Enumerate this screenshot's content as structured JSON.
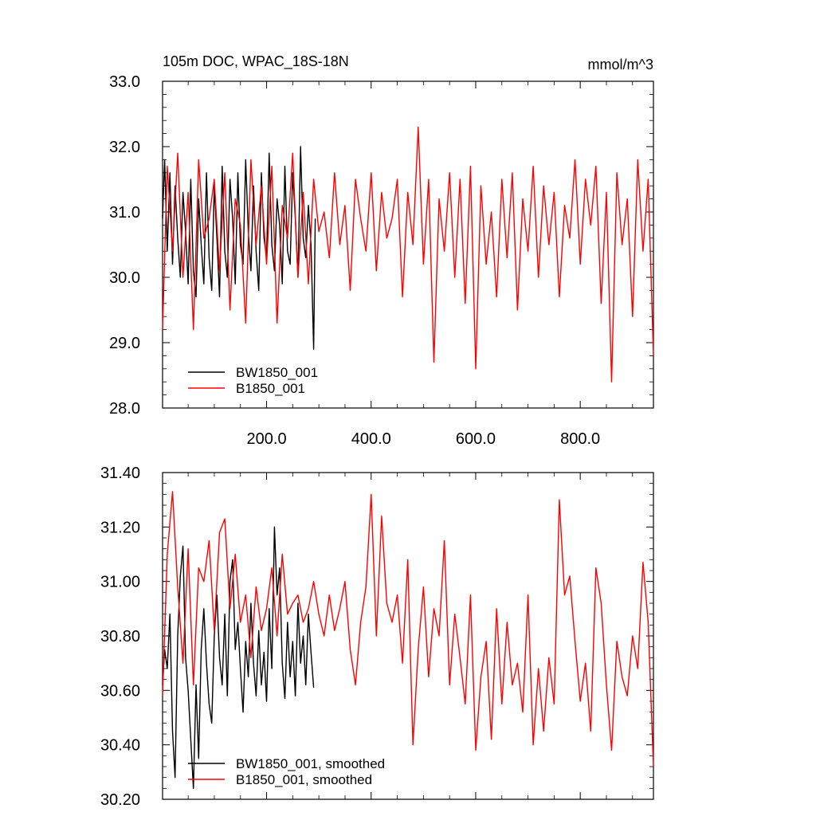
{
  "chart_data": [
    {
      "type": "line",
      "title": "105m DOC, WPAC_18S-18N",
      "units": "mmol/m^3",
      "xlim": [
        1,
        940
      ],
      "ylim": [
        28.0,
        33.0
      ],
      "yticks": [
        "28.0",
        "29.0",
        "30.0",
        "31.0",
        "32.0",
        "33.0"
      ],
      "xticks": [
        "200.0",
        "400.0",
        "600.0",
        "800.0"
      ],
      "legend_position": "bottom-left",
      "series": [
        {
          "name": "BW1850_001",
          "color": "#000000",
          "x": [
            1,
            5,
            10,
            15,
            20,
            25,
            30,
            35,
            40,
            45,
            50,
            55,
            60,
            65,
            70,
            75,
            80,
            85,
            90,
            95,
            100,
            105,
            110,
            115,
            120,
            125,
            130,
            135,
            140,
            145,
            150,
            155,
            160,
            165,
            170,
            175,
            180,
            185,
            190,
            195,
            200,
            205,
            210,
            215,
            220,
            225,
            230,
            235,
            240,
            245,
            250,
            255,
            260,
            265,
            270,
            275,
            280,
            285,
            290,
            293
          ],
          "values": [
            30.9,
            31.8,
            30.4,
            31.6,
            30.2,
            31.4,
            30.6,
            30.0,
            31.3,
            30.7,
            29.9,
            31.5,
            30.1,
            29.7,
            31.2,
            30.5,
            29.9,
            31.6,
            30.3,
            29.8,
            31.4,
            30.6,
            29.7,
            31.7,
            30.4,
            30.0,
            31.5,
            30.9,
            29.9,
            31.6,
            30.5,
            30.2,
            31.8,
            30.7,
            30.1,
            31.4,
            30.4,
            29.8,
            31.6,
            30.6,
            30.3,
            31.9,
            30.5,
            30.1,
            31.2,
            30.8,
            29.9,
            31.7,
            30.4,
            30.2,
            31.6,
            30.9,
            30.0,
            32.0,
            30.6,
            30.3,
            31.1,
            30.5,
            28.9,
            30.9
          ]
        },
        {
          "name": "B1850_001",
          "color": "#ff0000",
          "x": [
            1,
            10,
            20,
            30,
            40,
            50,
            60,
            70,
            80,
            90,
            100,
            110,
            120,
            130,
            140,
            150,
            160,
            170,
            180,
            190,
            200,
            210,
            220,
            230,
            240,
            250,
            260,
            270,
            280,
            290,
            300,
            310,
            320,
            330,
            340,
            350,
            360,
            370,
            380,
            390,
            400,
            410,
            420,
            430,
            440,
            450,
            460,
            470,
            480,
            490,
            500,
            510,
            520,
            530,
            540,
            550,
            560,
            570,
            580,
            590,
            600,
            610,
            620,
            630,
            640,
            650,
            660,
            670,
            680,
            690,
            700,
            710,
            720,
            730,
            740,
            750,
            760,
            770,
            780,
            790,
            800,
            810,
            820,
            830,
            840,
            850,
            860,
            870,
            880,
            890,
            900,
            910,
            920,
            930,
            940
          ],
          "values": [
            29.2,
            31.7,
            30.4,
            31.9,
            30.0,
            31.3,
            29.2,
            31.8,
            30.6,
            30.9,
            31.5,
            30.1,
            31.6,
            29.5,
            31.2,
            30.8,
            29.3,
            31.8,
            30.5,
            31.4,
            30.2,
            31.7,
            29.3,
            31.1,
            30.6,
            31.9,
            30.0,
            31.3,
            29.9,
            31.5,
            30.7,
            31.0,
            30.3,
            31.6,
            30.5,
            31.1,
            29.8,
            31.5,
            30.9,
            30.4,
            31.6,
            30.1,
            31.3,
            30.6,
            30.9,
            31.5,
            29.7,
            31.3,
            30.5,
            32.3,
            30.2,
            31.5,
            28.7,
            31.2,
            30.4,
            31.6,
            30.0,
            31.5,
            29.6,
            31.7,
            28.6,
            31.4,
            30.2,
            31.0,
            29.7,
            31.5,
            30.3,
            31.6,
            29.5,
            31.2,
            30.4,
            31.7,
            30.0,
            31.4,
            30.5,
            31.3,
            29.7,
            31.1,
            30.6,
            31.8,
            30.2,
            31.5,
            30.8,
            31.7,
            29.6,
            31.3,
            28.4,
            31.6,
            30.5,
            31.2,
            29.4,
            31.8,
            30.4,
            31.5,
            28.8
          ]
        }
      ]
    },
    {
      "type": "line",
      "title": "",
      "xlim": [
        1,
        940
      ],
      "ylim": [
        30.2,
        31.4
      ],
      "yticks": [
        "30.20",
        "30.40",
        "30.60",
        "30.80",
        "31.00",
        "31.20",
        "31.40"
      ],
      "legend_position": "bottom-left",
      "series": [
        {
          "name": "BW1850_001, smoothed",
          "color": "#000000",
          "x": [
            1,
            5,
            10,
            15,
            20,
            25,
            30,
            35,
            40,
            45,
            50,
            55,
            60,
            65,
            70,
            75,
            80,
            85,
            90,
            95,
            100,
            105,
            110,
            115,
            120,
            125,
            130,
            135,
            140,
            145,
            150,
            155,
            160,
            165,
            170,
            175,
            180,
            185,
            190,
            195,
            200,
            205,
            210,
            215,
            220,
            225,
            230,
            235,
            240,
            245,
            250,
            255,
            260,
            265,
            270,
            275,
            280,
            285,
            290
          ],
          "values": [
            30.62,
            30.75,
            30.68,
            30.88,
            30.45,
            30.28,
            30.8,
            31.02,
            31.13,
            30.72,
            30.6,
            30.42,
            30.24,
            30.62,
            30.35,
            30.75,
            30.9,
            30.7,
            30.55,
            30.48,
            30.8,
            30.95,
            30.72,
            30.62,
            30.88,
            30.58,
            31.0,
            31.08,
            30.75,
            30.85,
            30.68,
            30.52,
            30.78,
            30.65,
            30.92,
            30.7,
            30.58,
            30.82,
            30.62,
            30.74,
            30.56,
            30.9,
            30.68,
            31.2,
            30.95,
            31.05,
            30.7,
            30.57,
            30.85,
            30.65,
            30.78,
            30.58,
            30.92,
            30.7,
            30.8,
            30.62,
            30.88,
            30.74,
            30.61
          ]
        },
        {
          "name": "B1850_001, smoothed",
          "color": "#ff0000",
          "x": [
            1,
            10,
            20,
            30,
            40,
            50,
            60,
            70,
            80,
            90,
            100,
            110,
            120,
            130,
            140,
            150,
            160,
            170,
            180,
            190,
            200,
            210,
            220,
            230,
            240,
            250,
            260,
            270,
            280,
            290,
            300,
            310,
            320,
            330,
            340,
            350,
            360,
            370,
            380,
            390,
            400,
            410,
            420,
            430,
            440,
            450,
            460,
            470,
            480,
            490,
            500,
            510,
            520,
            530,
            540,
            550,
            560,
            570,
            580,
            590,
            600,
            610,
            620,
            630,
            640,
            650,
            660,
            670,
            680,
            690,
            700,
            710,
            720,
            730,
            740,
            750,
            760,
            770,
            780,
            790,
            800,
            810,
            820,
            830,
            840,
            850,
            860,
            870,
            880,
            890,
            900,
            910,
            920,
            930,
            940
          ],
          "values": [
            30.58,
            31.1,
            31.33,
            30.98,
            30.7,
            31.12,
            30.62,
            31.05,
            31.0,
            31.15,
            30.82,
            31.18,
            31.23,
            30.9,
            31.1,
            30.85,
            30.95,
            30.72,
            30.98,
            30.82,
            30.9,
            31.05,
            30.8,
            31.1,
            30.88,
            30.92,
            30.95,
            30.85,
            30.9,
            31.0,
            30.88,
            30.8,
            30.95,
            30.82,
            30.9,
            31.0,
            30.75,
            30.62,
            30.85,
            30.98,
            31.32,
            30.8,
            31.24,
            30.92,
            30.85,
            30.95,
            30.7,
            31.08,
            30.4,
            30.75,
            30.98,
            30.65,
            30.9,
            30.8,
            31.15,
            30.62,
            30.88,
            30.72,
            30.55,
            30.95,
            30.38,
            30.65,
            30.78,
            30.42,
            30.9,
            30.55,
            30.85,
            30.62,
            30.7,
            30.52,
            30.95,
            30.4,
            30.68,
            30.45,
            30.72,
            30.55,
            31.3,
            30.95,
            31.02,
            30.78,
            30.56,
            30.7,
            30.45,
            31.05,
            30.92,
            30.62,
            30.38,
            30.78,
            30.65,
            30.58,
            30.8,
            30.68,
            31.07,
            30.85,
            30.32
          ]
        }
      ]
    }
  ]
}
